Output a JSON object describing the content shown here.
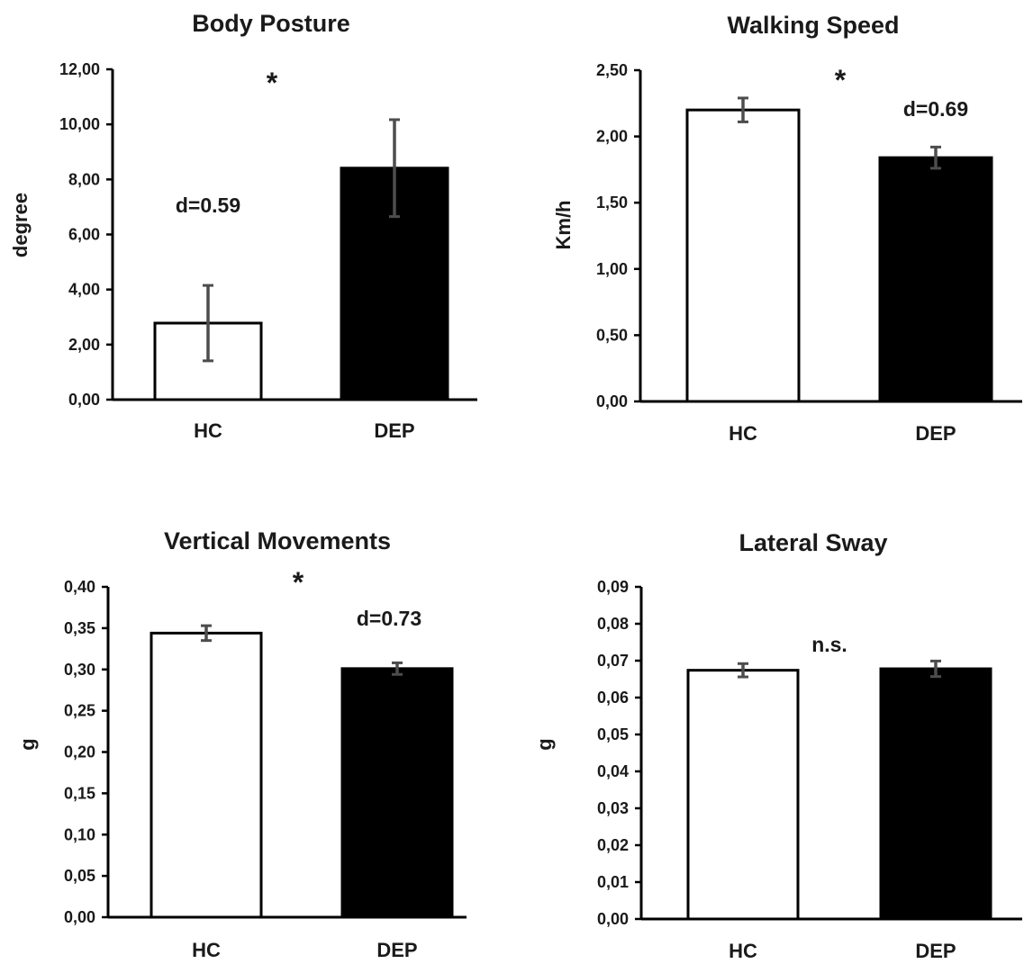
{
  "chart_data": [
    {
      "type": "bar",
      "title": "Body Posture",
      "ylabel": "degree",
      "categories": [
        "HC",
        "DEP"
      ],
      "values": [
        2.78,
        8.41
      ],
      "errors": [
        1.37,
        1.76
      ],
      "bar_colors": [
        "#ffffff",
        "#000000"
      ],
      "ylim": [
        0,
        12
      ],
      "yticks": [
        "0,00",
        "2,00",
        "4,00",
        "6,00",
        "8,00",
        "10,00",
        "12,00"
      ],
      "annotations": {
        "significance": "*",
        "effect_size": "d=0.59"
      }
    },
    {
      "type": "bar",
      "title": "Walking Speed",
      "ylabel": "Km/h",
      "categories": [
        "HC",
        "DEP"
      ],
      "values": [
        2.2,
        1.84
      ],
      "errors": [
        0.09,
        0.08
      ],
      "bar_colors": [
        "#ffffff",
        "#000000"
      ],
      "ylim": [
        0,
        2.5
      ],
      "yticks": [
        "0,00",
        "0,50",
        "1,00",
        "1,50",
        "2,00",
        "2,50"
      ],
      "annotations": {
        "significance": "*",
        "effect_size": "d=0.69"
      }
    },
    {
      "type": "bar",
      "title": "Vertical Movements",
      "ylabel": "g",
      "categories": [
        "HC",
        "DEP"
      ],
      "values": [
        0.344,
        0.301
      ],
      "errors": [
        0.009,
        0.007
      ],
      "bar_colors": [
        "#ffffff",
        "#000000"
      ],
      "ylim": [
        0,
        0.4
      ],
      "yticks": [
        "0,00",
        "0,05",
        "0,10",
        "0,15",
        "0,20",
        "0,25",
        "0,30",
        "0,35",
        "0,40"
      ],
      "annotations": {
        "significance": "*",
        "effect_size": "d=0.73"
      }
    },
    {
      "type": "bar",
      "title": "Lateral Sway",
      "ylabel": "g",
      "categories": [
        "HC",
        "DEP"
      ],
      "values": [
        0.0674,
        0.0678
      ],
      "errors": [
        0.0018,
        0.0021
      ],
      "bar_colors": [
        "#ffffff",
        "#000000"
      ],
      "ylim": [
        0,
        0.09
      ],
      "yticks": [
        "0,00",
        "0,01",
        "0,02",
        "0,03",
        "0,04",
        "0,05",
        "0,06",
        "0,07",
        "0,08",
        "0,09"
      ],
      "annotations": {
        "significance": "n.s.",
        "effect_size": ""
      }
    }
  ]
}
